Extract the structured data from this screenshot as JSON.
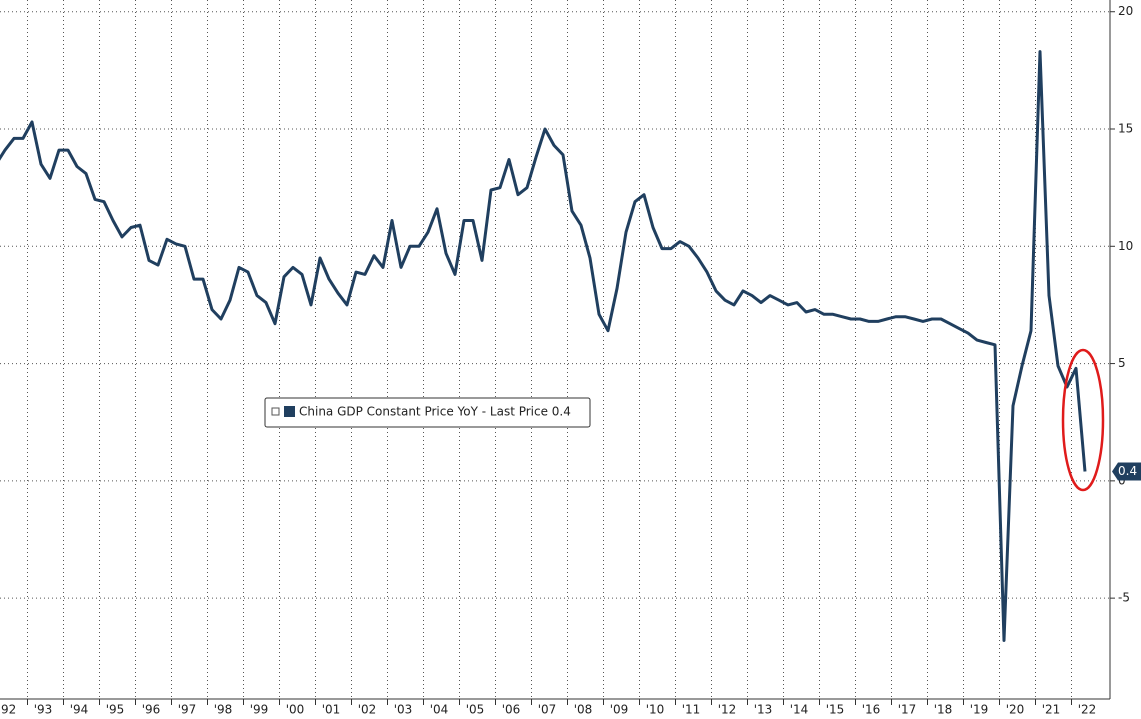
{
  "chart_data": {
    "type": "line",
    "categories": [
      null,
      "'92",
      null,
      null,
      null,
      "'93",
      null,
      null,
      null,
      "'94",
      null,
      null,
      null,
      "'95",
      null,
      null,
      null,
      "'96",
      null,
      null,
      null,
      "'97",
      null,
      null,
      null,
      "'98",
      null,
      null,
      null,
      "'99",
      null,
      null,
      null,
      "'00",
      null,
      null,
      null,
      "'01",
      null,
      null,
      null,
      "'02",
      null,
      null,
      null,
      "'03",
      null,
      null,
      null,
      "'04",
      null,
      null,
      null,
      "'05",
      null,
      null,
      null,
      "'06",
      null,
      null,
      null,
      "'07",
      null,
      null,
      null,
      "'08",
      null,
      null,
      null,
      "'09",
      null,
      null,
      null,
      "'10",
      null,
      null,
      null,
      "'11",
      null,
      null,
      null,
      "'12",
      null,
      null,
      null,
      "'13",
      null,
      null,
      null,
      "'14",
      null,
      null,
      null,
      "'15",
      null,
      null,
      null,
      "'16",
      null,
      null,
      null,
      "'17",
      null,
      null,
      null,
      "'18",
      null,
      null,
      null,
      "'19",
      null,
      null,
      null,
      "'20",
      null,
      null,
      null,
      "'21",
      null,
      null,
      null,
      "'22"
    ],
    "series": [
      {
        "name": "China GDP Constant Price YoY - Last Price 0.4",
        "color": "#203f5f",
        "values": [
          13.5,
          14.1,
          14.6,
          14.6,
          15.3,
          13.5,
          12.9,
          14.1,
          14.1,
          13.4,
          13.1,
          12.0,
          11.9,
          11.1,
          10.4,
          10.8,
          10.9,
          9.4,
          9.2,
          10.3,
          10.1,
          10.0,
          8.6,
          8.6,
          7.3,
          6.9,
          7.7,
          9.1,
          8.9,
          7.9,
          7.6,
          6.7,
          8.7,
          9.1,
          8.8,
          7.5,
          9.5,
          8.6,
          8.0,
          7.5,
          8.9,
          8.8,
          9.6,
          9.1,
          11.1,
          9.1,
          10.0,
          10.0,
          10.6,
          11.6,
          9.7,
          8.8,
          11.1,
          11.1,
          9.4,
          12.4,
          12.5,
          13.7,
          12.2,
          12.5,
          13.8,
          15.0,
          14.3,
          13.9,
          11.5,
          10.9,
          9.5,
          7.1,
          6.4,
          8.2,
          10.6,
          11.9,
          12.2,
          10.8,
          9.9,
          9.9,
          10.2,
          10.0,
          9.5,
          8.9,
          8.1,
          7.7,
          7.5,
          8.1,
          7.9,
          7.6,
          7.9,
          7.7,
          7.5,
          7.6,
          7.2,
          7.3,
          7.1,
          7.1,
          7.0,
          6.9,
          6.9,
          6.8,
          6.8,
          6.9,
          7.0,
          7.0,
          6.9,
          6.8,
          6.9,
          6.9,
          6.7,
          6.5,
          6.3,
          6.0,
          5.9,
          5.8,
          -6.8,
          3.2,
          4.9,
          6.4,
          18.3,
          7.9,
          4.9,
          4.0,
          4.8,
          0.4
        ]
      }
    ],
    "ylim": [
      -9.3,
      20.5
    ],
    "yticks": [
      -5,
      0,
      5,
      10,
      15,
      20
    ],
    "grid": true
  }
}
